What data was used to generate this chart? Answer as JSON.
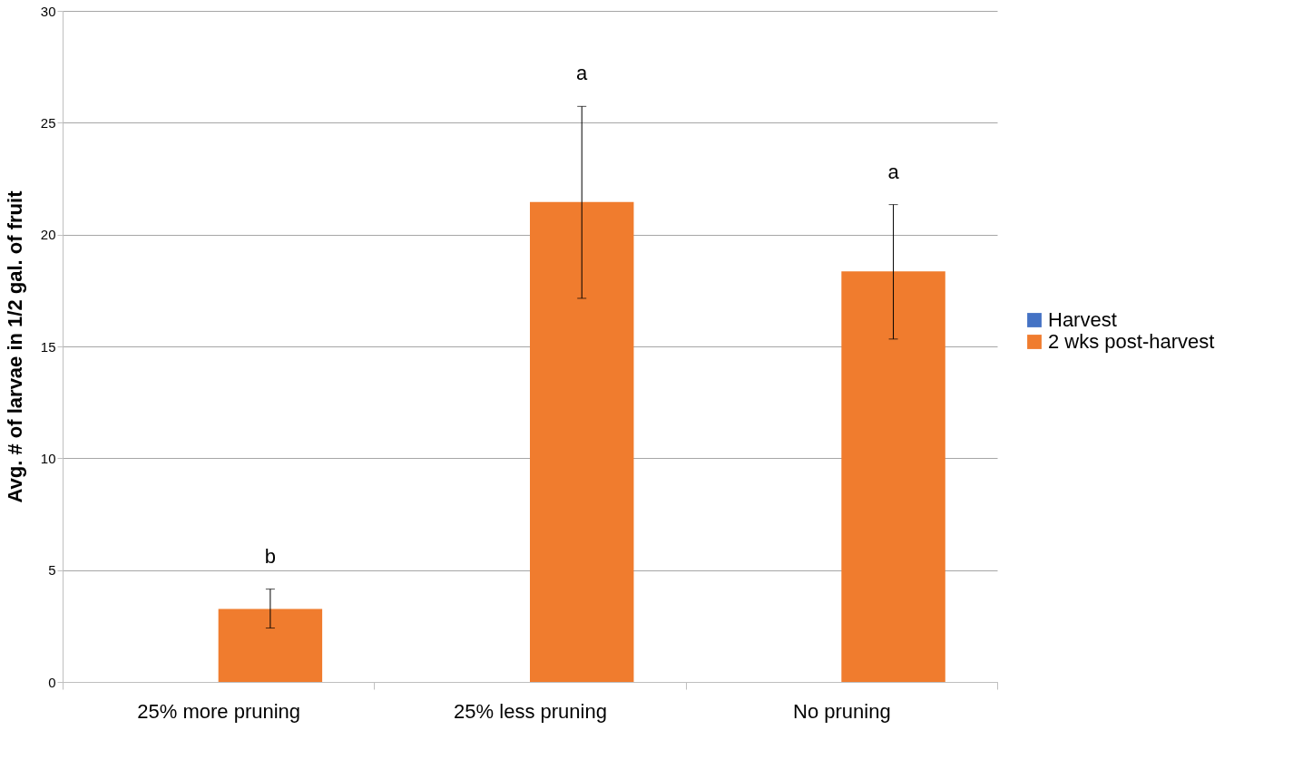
{
  "chart_data": {
    "type": "bar",
    "ylabel": "Avg. # of larvae in 1/2 gal. of fruit",
    "categories": [
      "25% more pruning",
      "25% less pruning",
      "No pruning"
    ],
    "series": [
      {
        "name": "Harvest",
        "color": "#4472c4",
        "values": [
          null,
          null,
          null
        ]
      },
      {
        "name": "2 wks post-harvest",
        "color": "#f07c2e",
        "values": [
          3.26,
          21.46,
          18.35
        ],
        "errors": [
          [
            2.41,
            4.15
          ],
          [
            17.15,
            25.73
          ],
          [
            15.33,
            21.34
          ]
        ]
      }
    ],
    "ylim": [
      0,
      30
    ],
    "yticks": [
      0,
      5,
      10,
      15,
      20,
      25,
      30
    ],
    "grid": "y",
    "legend": "right",
    "annotations": [
      "b",
      "a",
      "a"
    ]
  }
}
